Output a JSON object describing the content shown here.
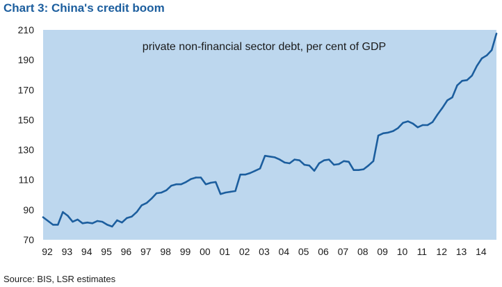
{
  "header": {
    "title": "Chart 3: China's credit boom"
  },
  "footer": {
    "source": "Source: BIS, LSR estimates"
  },
  "colors": {
    "title": "#1c5e9e",
    "plot_background": "#bdd7ee",
    "line": "#1c5e9e",
    "text": "#1a1a1a"
  },
  "chart_data": {
    "type": "line",
    "title": "Chart 3: China's credit boom",
    "subtitle": "private non-financial  sector debt, per cent of GDP",
    "xlabel": "",
    "ylabel": "",
    "ylim": [
      70,
      210
    ],
    "xlim": [
      1992.0,
      2014.99
    ],
    "grid": false,
    "y_ticks": [
      70,
      90,
      110,
      130,
      150,
      170,
      190,
      210
    ],
    "x_tick_labels": [
      "92",
      "93",
      "94",
      "95",
      "96",
      "97",
      "98",
      "99",
      "00",
      "01",
      "02",
      "03",
      "04",
      "05",
      "06",
      "07",
      "08",
      "09",
      "10",
      "11",
      "12",
      "13",
      "14"
    ],
    "series": [
      {
        "name": "private non-financial sector debt, per cent of GDP",
        "x": [
          1992.0,
          1992.25,
          1992.5,
          1992.75,
          1993.0,
          1993.25,
          1993.5,
          1993.75,
          1994.0,
          1994.25,
          1994.5,
          1994.75,
          1995.0,
          1995.25,
          1995.5,
          1995.75,
          1996.0,
          1996.25,
          1996.5,
          1996.75,
          1997.0,
          1997.25,
          1997.5,
          1997.75,
          1998.0,
          1998.25,
          1998.5,
          1998.75,
          1999.0,
          1999.25,
          1999.5,
          1999.75,
          2000.0,
          2000.25,
          2000.5,
          2000.75,
          2001.0,
          2001.25,
          2001.5,
          2001.75,
          2002.0,
          2002.25,
          2002.5,
          2002.75,
          2003.0,
          2003.25,
          2003.5,
          2003.75,
          2004.0,
          2004.25,
          2004.5,
          2004.75,
          2005.0,
          2005.25,
          2005.5,
          2005.75,
          2006.0,
          2006.25,
          2006.5,
          2006.75,
          2007.0,
          2007.25,
          2007.5,
          2007.75,
          2008.0,
          2008.25,
          2008.5,
          2008.75,
          2009.0,
          2009.25,
          2009.5,
          2009.75,
          2010.0,
          2010.25,
          2010.5,
          2010.75,
          2011.0,
          2011.25,
          2011.5,
          2011.75,
          2012.0,
          2012.25,
          2012.5,
          2012.75,
          2013.0,
          2013.25,
          2013.5,
          2013.75,
          2014.0,
          2014.25,
          2014.5,
          2014.75,
          2014.99
        ],
        "values": [
          85,
          82.5,
          80,
          80,
          88.5,
          86,
          82,
          83.5,
          81,
          81.5,
          81,
          82.5,
          82,
          80,
          78.8,
          83,
          81.5,
          84.5,
          85.5,
          88.5,
          93,
          94.5,
          97.5,
          101,
          101.5,
          103,
          106,
          107,
          107,
          108.5,
          110.5,
          111.5,
          111.5,
          107,
          108,
          108.5,
          100.5,
          101.5,
          102,
          102.5,
          113.5,
          113.5,
          114.5,
          116,
          117.5,
          126,
          125.5,
          125,
          123.5,
          121.5,
          121,
          123.5,
          123,
          120,
          119.5,
          116,
          121,
          123,
          123.5,
          120,
          120.5,
          122.5,
          122,
          116.5,
          116.5,
          117,
          119.5,
          122.5,
          139.5,
          141,
          141.5,
          142.5,
          144.5,
          148,
          149,
          147.5,
          145,
          146.5,
          146.5,
          148.5,
          153.5,
          158,
          163,
          165,
          173,
          176,
          176.5,
          179.5,
          186,
          191,
          193,
          196.5,
          207.5
        ]
      }
    ]
  }
}
